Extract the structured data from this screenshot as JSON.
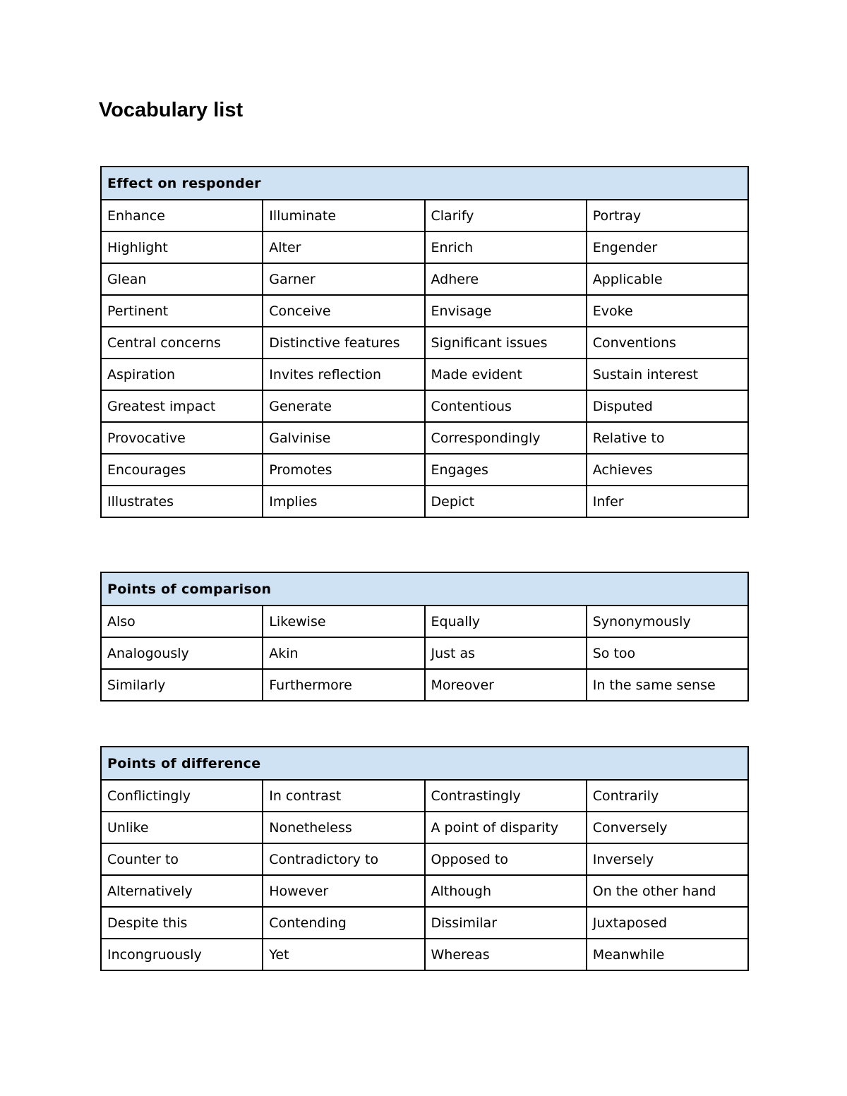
{
  "title": "Vocabulary list",
  "colors": {
    "header_bg": "#cfe2f3",
    "border": "#000000"
  },
  "tables": [
    {
      "heading": "Effect on responder",
      "rows": [
        [
          "Enhance",
          "Illuminate",
          "Clarify",
          "Portray"
        ],
        [
          "Highlight",
          "Alter",
          "Enrich",
          "Engender"
        ],
        [
          "Glean",
          "Garner",
          "Adhere",
          "Applicable"
        ],
        [
          "Pertinent",
          "Conceive",
          "Envisage",
          "Evoke"
        ],
        [
          "Central concerns",
          "Distinctive features",
          "Significant issues",
          "Conventions"
        ],
        [
          "Aspiration",
          "Invites reflection",
          "Made evident",
          "Sustain interest"
        ],
        [
          "Greatest impact",
          "Generate",
          "Contentious",
          "Disputed"
        ],
        [
          "Provocative",
          "Galvinise",
          "Correspondingly",
          "Relative to"
        ],
        [
          "Encourages",
          "Promotes",
          "Engages",
          "Achieves"
        ],
        [
          "Illustrates",
          "Implies",
          "Depict",
          "Infer"
        ]
      ]
    },
    {
      "heading": "Points of comparison",
      "rows": [
        [
          "Also",
          "Likewise",
          "Equally",
          "Synonymously"
        ],
        [
          "Analogously",
          "Akin",
          "Just as",
          "So too"
        ],
        [
          "Similarly",
          "Furthermore",
          "Moreover",
          "In the same sense"
        ]
      ]
    },
    {
      "heading": "Points of difference",
      "rows": [
        [
          "Conflictingly",
          "In contrast",
          "Contrastingly",
          "Contrarily"
        ],
        [
          "Unlike",
          "Nonetheless",
          "A point of disparity",
          "Conversely"
        ],
        [
          "Counter to",
          "Contradictory to",
          "Opposed to",
          "Inversely"
        ],
        [
          "Alternatively",
          "However",
          "Although",
          "On the other hand"
        ],
        [
          "Despite this",
          "Contending",
          "Dissimilar",
          "Juxtaposed"
        ],
        [
          "Incongruously",
          "Yet",
          "Whereas",
          "Meanwhile"
        ]
      ]
    }
  ]
}
